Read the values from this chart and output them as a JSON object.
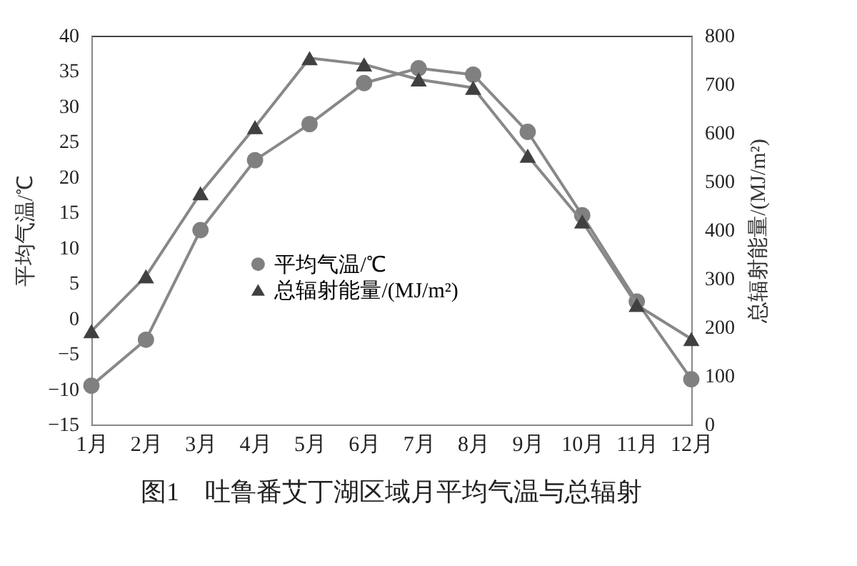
{
  "chart_data": {
    "type": "line",
    "title": "图1　吐鲁番艾丁湖区域月平均气温与总辐射",
    "categories": [
      "1月",
      "2月",
      "3月",
      "4月",
      "5月",
      "6月",
      "7月",
      "8月",
      "9月",
      "10月",
      "11月",
      "12月"
    ],
    "ylabel": "平均气温/℃",
    "y2label": "总辐射能量/(MJ/m²)",
    "series": [
      {
        "name": "平均气温/℃",
        "color": "#808080",
        "marker": "circle",
        "axis": "y",
        "values": [
          -9.5,
          -3,
          12.5,
          22.4,
          27.5,
          33.3,
          35.4,
          34.5,
          26.4,
          14.6,
          2.4,
          -8.6
        ]
      },
      {
        "name": "总辐射能量/(MJ/m²)",
        "color": "#404040",
        "marker": "triangle",
        "axis": "y2",
        "values": [
          192,
          305,
          476,
          612,
          754,
          741,
          710,
          693,
          553,
          418,
          246,
          176
        ]
      }
    ],
    "ylim": [
      -15,
      40
    ],
    "yticks": [
      -15,
      -10,
      -5,
      0,
      5,
      10,
      15,
      20,
      25,
      30,
      35,
      40
    ],
    "y2lim": [
      0,
      800
    ],
    "y2ticks": [
      0,
      100,
      200,
      300,
      400,
      500,
      600,
      700,
      800
    ],
    "grid": false,
    "legend": "center",
    "line_style": "solid"
  }
}
